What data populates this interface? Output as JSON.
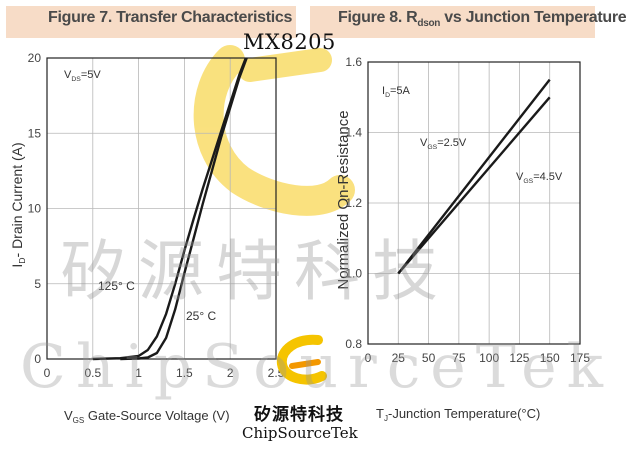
{
  "part_number": "MX8205",
  "watermark": {
    "cn": "矽源特科技",
    "latin": "ChipSourceTek"
  },
  "logo": {
    "cn": "矽源特科技",
    "en": "ChipSourceTek"
  },
  "colors": {
    "header_band": "#f7dcc7",
    "curve": "#1a1a1a",
    "watermark_logo": "#f5c400"
  },
  "chart_data": [
    {
      "type": "line",
      "title": "Figure 7. Transfer Characteristics",
      "xlabel": "V_GS Gate-Source Voltage (V)",
      "ylabel": "I_D- Drain Current (A)",
      "xlim": [
        0,
        2.5
      ],
      "ylim": [
        0,
        20
      ],
      "x_ticks": [
        "0",
        "0.5",
        "1",
        "1.5",
        "2",
        "2.5"
      ],
      "y_ticks": [
        "0",
        "5",
        "10",
        "15",
        "20"
      ],
      "grid": true,
      "annotation": "V_DS=5V",
      "series": [
        {
          "name": "125° C",
          "x": [
            0.5,
            0.8,
            1.0,
            1.1,
            1.2,
            1.3,
            1.4,
            1.5,
            1.6,
            1.7,
            1.8,
            1.9,
            2.0,
            2.1,
            2.17
          ],
          "y": [
            0.0,
            0.05,
            0.2,
            0.6,
            1.5,
            3.0,
            5.0,
            7.2,
            9.3,
            11.3,
            13.2,
            15.1,
            17.0,
            18.9,
            20.0
          ]
        },
        {
          "name": "25° C",
          "x": [
            0.8,
            1.0,
            1.1,
            1.2,
            1.3,
            1.4,
            1.5,
            1.6,
            1.7,
            1.8,
            1.9,
            2.0,
            2.1,
            2.18
          ],
          "y": [
            0.0,
            0.03,
            0.1,
            0.4,
            1.4,
            3.3,
            5.7,
            8.0,
            10.3,
            12.5,
            14.7,
            16.7,
            18.7,
            20.0
          ]
        }
      ]
    },
    {
      "type": "line",
      "title": "Figure 8. Rdson vs Junction Temperature",
      "xlabel": "T_J-Junction Temperature(°C)",
      "ylabel": "Normalized On-Resistance",
      "xlim": [
        0,
        175
      ],
      "ylim": [
        0.8,
        1.6
      ],
      "x_ticks": [
        "0",
        "25",
        "50",
        "75",
        "100",
        "125",
        "150",
        "175"
      ],
      "y_ticks": [
        "0.8",
        "1.0",
        "1.2",
        "1.4",
        "1.6"
      ],
      "grid": true,
      "annotation": "I_D=5A",
      "series": [
        {
          "name": "V_GS=2.5V",
          "x": [
            25,
            150
          ],
          "y": [
            1.0,
            1.55
          ]
        },
        {
          "name": "V_GS=4.5V",
          "x": [
            25,
            150
          ],
          "y": [
            1.0,
            1.5
          ]
        }
      ]
    }
  ]
}
